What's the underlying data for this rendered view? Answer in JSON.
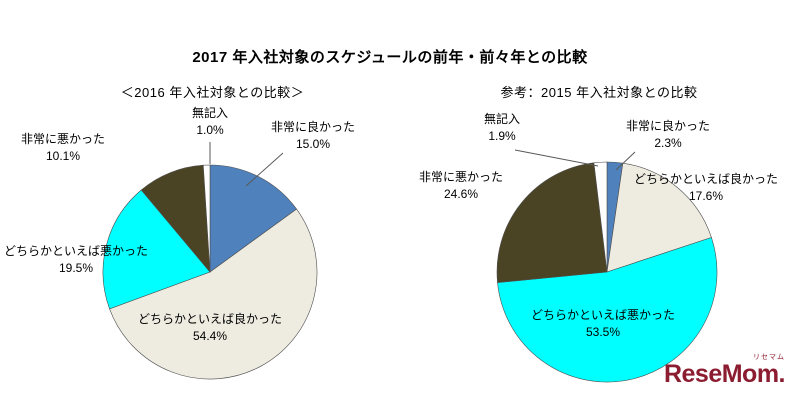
{
  "page": {
    "title": "2017 年入社対象のスケジュールの前年・前々年との比較",
    "logo": {
      "text": "ReseMom.",
      "ruby": "リセマム",
      "color": "#8c1c30"
    }
  },
  "chart_data": [
    {
      "type": "pie",
      "title": "＜2016 年入社対象との比較＞",
      "start_angle": "12-oclock",
      "direction": "clockwise",
      "slices": [
        {
          "label": "非常に良かった",
          "value": 15.0,
          "pct_text": "15.0%",
          "color": "#4f81bd"
        },
        {
          "label": "どちらかといえば良かった",
          "value": 54.4,
          "pct_text": "54.4%",
          "color": "#eeece1"
        },
        {
          "label": "どちらかといえば悪かった",
          "value": 19.5,
          "pct_text": "19.5%",
          "color": "#00ffff"
        },
        {
          "label": "非常に悪かった",
          "value": 10.1,
          "pct_text": "10.1%",
          "color": "#4b4424"
        },
        {
          "label": "無記入",
          "value": 1.0,
          "pct_text": "1.0%",
          "color": "#ffffff"
        }
      ]
    },
    {
      "type": "pie",
      "title": "参考：2015 年入社対象との比較",
      "start_angle": "12-oclock",
      "direction": "clockwise",
      "slices": [
        {
          "label": "非常に良かった",
          "value": 2.3,
          "pct_text": "2.3%",
          "color": "#4f81bd"
        },
        {
          "label": "どちらかといえば良かった",
          "value": 17.6,
          "pct_text": "17.6%",
          "color": "#eeece1"
        },
        {
          "label": "どちらかといえば悪かった",
          "value": 53.5,
          "pct_text": "53.5%",
          "color": "#00ffff"
        },
        {
          "label": "非常に悪かった",
          "value": 24.6,
          "pct_text": "24.6%",
          "color": "#4b4424"
        },
        {
          "label": "無記入",
          "value": 1.9,
          "pct_text": "1.9%",
          "color": "#ffffff"
        }
      ]
    }
  ]
}
